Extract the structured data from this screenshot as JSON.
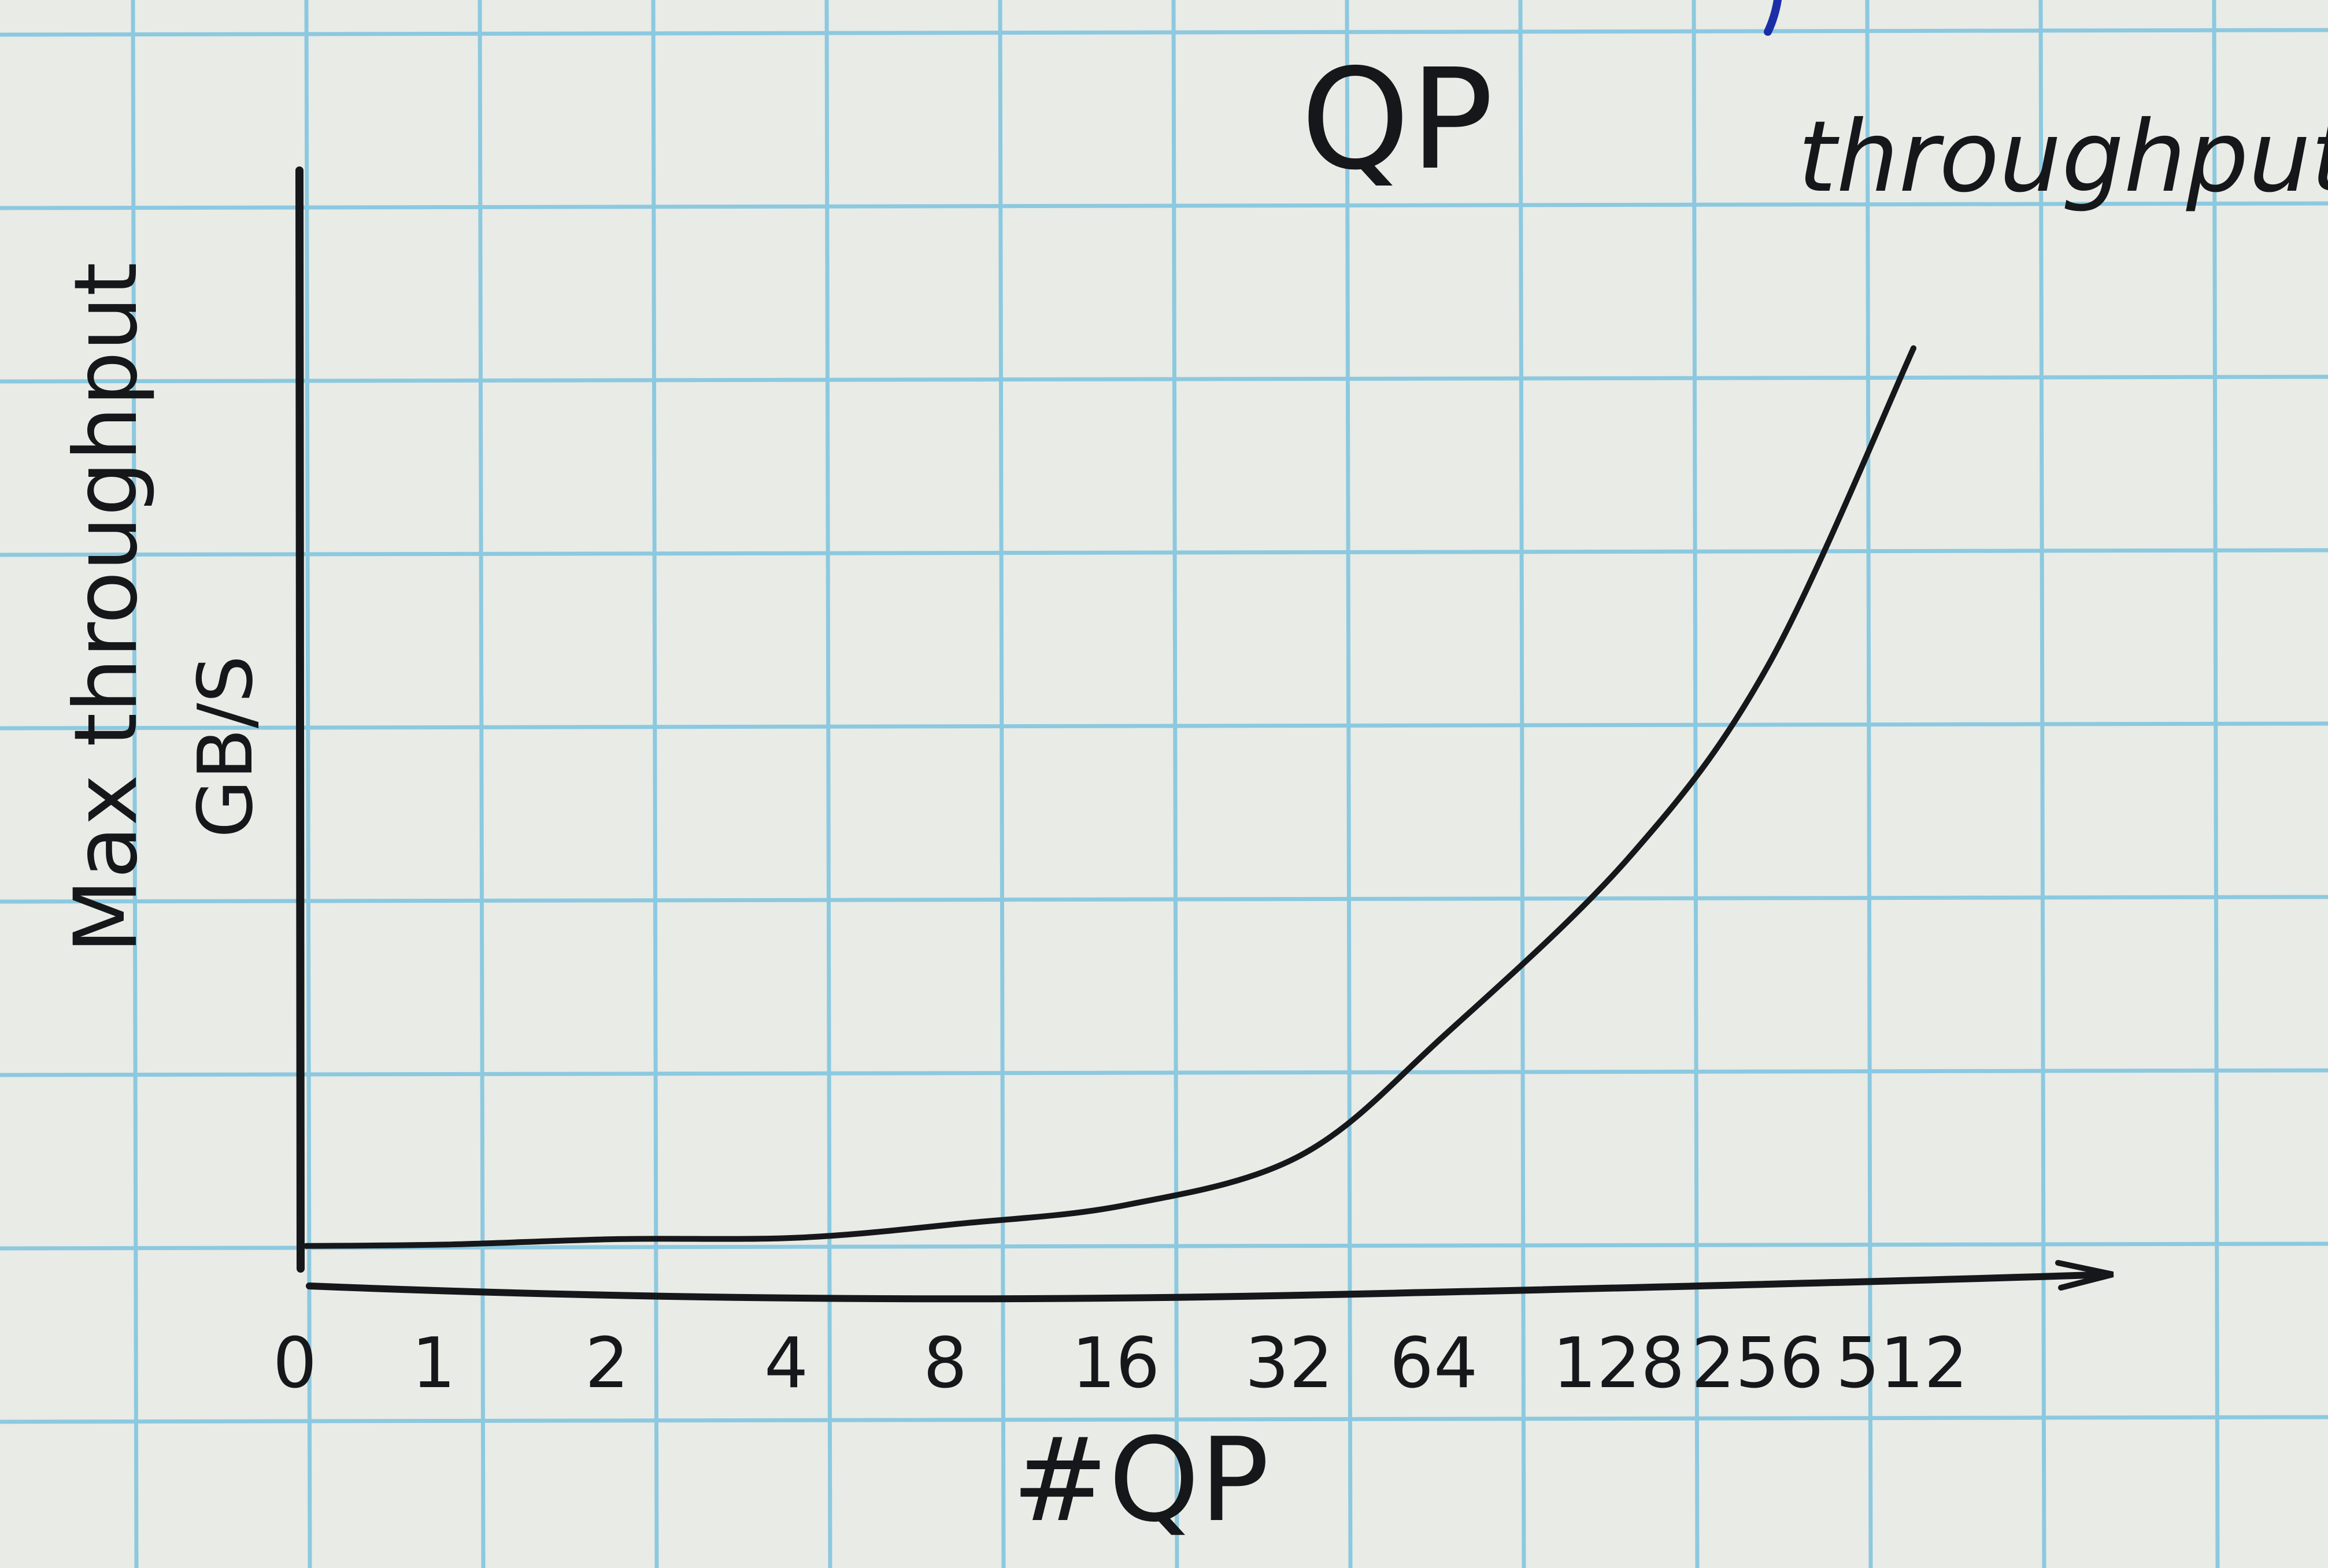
{
  "chart_data": {
    "type": "line",
    "title": "QP",
    "series": [
      {
        "name": "throughput",
        "points": [
          {
            "x": "0",
            "y": 0.3
          },
          {
            "x": "1",
            "y": 0.35
          },
          {
            "x": "2",
            "y": 0.55
          },
          {
            "x": "4",
            "y": 0.6
          },
          {
            "x": "8",
            "y": 1.1
          },
          {
            "x": "16",
            "y": 1.8
          },
          {
            "x": "32",
            "y": 3.6
          },
          {
            "x": "64",
            "y": 8.0
          },
          {
            "x": "128",
            "y": 14.5
          },
          {
            "x": "256",
            "y": 21.5
          },
          {
            "x": "512",
            "y": 33.0
          }
        ]
      }
    ],
    "xlabel": "#QP",
    "ylabel": "Max throughput",
    "yunit": "GB/S",
    "categories": [
      "0",
      "1",
      "2",
      "4",
      "8",
      "16",
      "32",
      "64",
      "128",
      "256",
      "512"
    ],
    "ylim": [
      0,
      36
    ],
    "grid": true,
    "colors": {
      "paper": "#e9ebe6",
      "grid": "#8cc9e0",
      "ink": "#15171a",
      "pen_mark": "#1b2ea8"
    }
  }
}
